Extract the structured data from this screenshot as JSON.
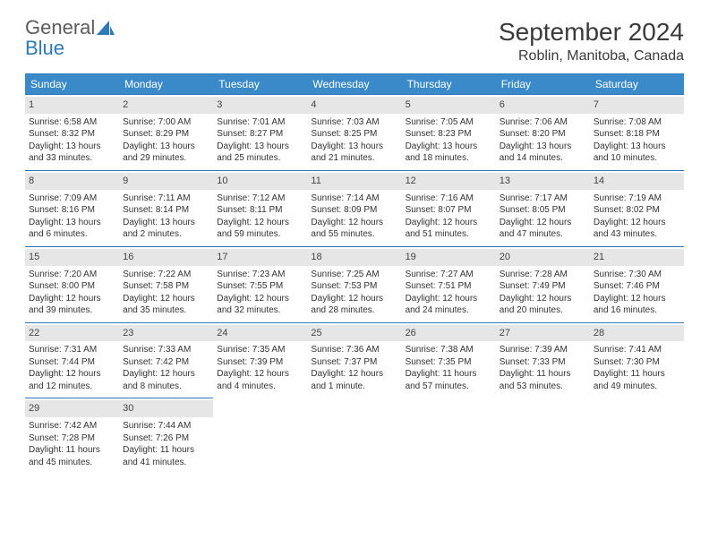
{
  "logo": {
    "general": "General",
    "blue": "Blue"
  },
  "title": "September 2024",
  "location": "Roblin, Manitoba, Canada",
  "colors": {
    "headerBg": "#3a8ac9",
    "rowBorder": "#2f79b9",
    "dayNumBg": "#e6e6e6",
    "text": "#333333",
    "logoGray": "#5b5b5b",
    "logoBlue": "#2f79b9"
  },
  "dayHeaders": [
    "Sunday",
    "Monday",
    "Tuesday",
    "Wednesday",
    "Thursday",
    "Friday",
    "Saturday"
  ],
  "weeks": [
    [
      {
        "n": "1",
        "sr": "6:58 AM",
        "ss": "8:32 PM",
        "dl": "13 hours and 33 minutes."
      },
      {
        "n": "2",
        "sr": "7:00 AM",
        "ss": "8:29 PM",
        "dl": "13 hours and 29 minutes."
      },
      {
        "n": "3",
        "sr": "7:01 AM",
        "ss": "8:27 PM",
        "dl": "13 hours and 25 minutes."
      },
      {
        "n": "4",
        "sr": "7:03 AM",
        "ss": "8:25 PM",
        "dl": "13 hours and 21 minutes."
      },
      {
        "n": "5",
        "sr": "7:05 AM",
        "ss": "8:23 PM",
        "dl": "13 hours and 18 minutes."
      },
      {
        "n": "6",
        "sr": "7:06 AM",
        "ss": "8:20 PM",
        "dl": "13 hours and 14 minutes."
      },
      {
        "n": "7",
        "sr": "7:08 AM",
        "ss": "8:18 PM",
        "dl": "13 hours and 10 minutes."
      }
    ],
    [
      {
        "n": "8",
        "sr": "7:09 AM",
        "ss": "8:16 PM",
        "dl": "13 hours and 6 minutes."
      },
      {
        "n": "9",
        "sr": "7:11 AM",
        "ss": "8:14 PM",
        "dl": "13 hours and 2 minutes."
      },
      {
        "n": "10",
        "sr": "7:12 AM",
        "ss": "8:11 PM",
        "dl": "12 hours and 59 minutes."
      },
      {
        "n": "11",
        "sr": "7:14 AM",
        "ss": "8:09 PM",
        "dl": "12 hours and 55 minutes."
      },
      {
        "n": "12",
        "sr": "7:16 AM",
        "ss": "8:07 PM",
        "dl": "12 hours and 51 minutes."
      },
      {
        "n": "13",
        "sr": "7:17 AM",
        "ss": "8:05 PM",
        "dl": "12 hours and 47 minutes."
      },
      {
        "n": "14",
        "sr": "7:19 AM",
        "ss": "8:02 PM",
        "dl": "12 hours and 43 minutes."
      }
    ],
    [
      {
        "n": "15",
        "sr": "7:20 AM",
        "ss": "8:00 PM",
        "dl": "12 hours and 39 minutes."
      },
      {
        "n": "16",
        "sr": "7:22 AM",
        "ss": "7:58 PM",
        "dl": "12 hours and 35 minutes."
      },
      {
        "n": "17",
        "sr": "7:23 AM",
        "ss": "7:55 PM",
        "dl": "12 hours and 32 minutes."
      },
      {
        "n": "18",
        "sr": "7:25 AM",
        "ss": "7:53 PM",
        "dl": "12 hours and 28 minutes."
      },
      {
        "n": "19",
        "sr": "7:27 AM",
        "ss": "7:51 PM",
        "dl": "12 hours and 24 minutes."
      },
      {
        "n": "20",
        "sr": "7:28 AM",
        "ss": "7:49 PM",
        "dl": "12 hours and 20 minutes."
      },
      {
        "n": "21",
        "sr": "7:30 AM",
        "ss": "7:46 PM",
        "dl": "12 hours and 16 minutes."
      }
    ],
    [
      {
        "n": "22",
        "sr": "7:31 AM",
        "ss": "7:44 PM",
        "dl": "12 hours and 12 minutes."
      },
      {
        "n": "23",
        "sr": "7:33 AM",
        "ss": "7:42 PM",
        "dl": "12 hours and 8 minutes."
      },
      {
        "n": "24",
        "sr": "7:35 AM",
        "ss": "7:39 PM",
        "dl": "12 hours and 4 minutes."
      },
      {
        "n": "25",
        "sr": "7:36 AM",
        "ss": "7:37 PM",
        "dl": "12 hours and 1 minute."
      },
      {
        "n": "26",
        "sr": "7:38 AM",
        "ss": "7:35 PM",
        "dl": "11 hours and 57 minutes."
      },
      {
        "n": "27",
        "sr": "7:39 AM",
        "ss": "7:33 PM",
        "dl": "11 hours and 53 minutes."
      },
      {
        "n": "28",
        "sr": "7:41 AM",
        "ss": "7:30 PM",
        "dl": "11 hours and 49 minutes."
      }
    ],
    [
      {
        "n": "29",
        "sr": "7:42 AM",
        "ss": "7:28 PM",
        "dl": "11 hours and 45 minutes."
      },
      {
        "n": "30",
        "sr": "7:44 AM",
        "ss": "7:26 PM",
        "dl": "11 hours and 41 minutes."
      },
      null,
      null,
      null,
      null,
      null
    ]
  ],
  "labels": {
    "sunrise": "Sunrise:",
    "sunset": "Sunset:",
    "daylight": "Daylight:"
  }
}
